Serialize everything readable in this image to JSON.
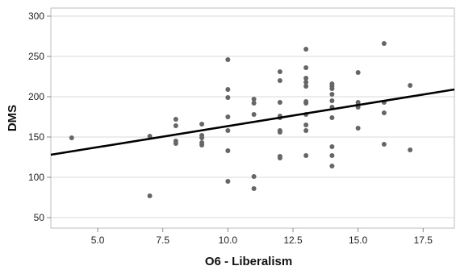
{
  "chart_data": {
    "type": "scatter",
    "title": "",
    "xlabel": "O6 - Liberalism",
    "ylabel": "DMS",
    "xlim": [
      3.2,
      18.7
    ],
    "ylim": [
      37,
      310
    ],
    "x_ticks": [
      5.0,
      7.5,
      10.0,
      12.5,
      15.0,
      17.5
    ],
    "y_ticks": [
      50,
      100,
      150,
      200,
      250,
      300
    ],
    "x_tick_labels": [
      "5.0",
      "7.5",
      "10.0",
      "12.5",
      "15.0",
      "17.5"
    ],
    "y_tick_labels": [
      "50",
      "100",
      "150",
      "200",
      "250",
      "300"
    ],
    "grid": "horizontal",
    "point_color": "#666666",
    "line_color": "#000000",
    "fit_line": {
      "x": [
        3.2,
        18.7
      ],
      "y": [
        128,
        209
      ]
    },
    "points": [
      {
        "x": 4,
        "y": 149
      },
      {
        "x": 7,
        "y": 151
      },
      {
        "x": 7,
        "y": 77
      },
      {
        "x": 8,
        "y": 172
      },
      {
        "x": 8,
        "y": 164
      },
      {
        "x": 8,
        "y": 145
      },
      {
        "x": 8,
        "y": 142
      },
      {
        "x": 9,
        "y": 166
      },
      {
        "x": 9,
        "y": 152
      },
      {
        "x": 9,
        "y": 149
      },
      {
        "x": 9,
        "y": 143
      },
      {
        "x": 9,
        "y": 140
      },
      {
        "x": 10,
        "y": 246
      },
      {
        "x": 10,
        "y": 209
      },
      {
        "x": 10,
        "y": 199
      },
      {
        "x": 10,
        "y": 175
      },
      {
        "x": 10,
        "y": 158
      },
      {
        "x": 10,
        "y": 133
      },
      {
        "x": 10,
        "y": 95
      },
      {
        "x": 11,
        "y": 197
      },
      {
        "x": 11,
        "y": 192
      },
      {
        "x": 11,
        "y": 178
      },
      {
        "x": 11,
        "y": 101
      },
      {
        "x": 11,
        "y": 86
      },
      {
        "x": 12,
        "y": 231
      },
      {
        "x": 12,
        "y": 220
      },
      {
        "x": 12,
        "y": 193
      },
      {
        "x": 12,
        "y": 176
      },
      {
        "x": 12,
        "y": 174
      },
      {
        "x": 12,
        "y": 158
      },
      {
        "x": 12,
        "y": 156
      },
      {
        "x": 12,
        "y": 126
      },
      {
        "x": 12,
        "y": 124
      },
      {
        "x": 13,
        "y": 259
      },
      {
        "x": 13,
        "y": 236
      },
      {
        "x": 13,
        "y": 223
      },
      {
        "x": 13,
        "y": 218
      },
      {
        "x": 13,
        "y": 213
      },
      {
        "x": 13,
        "y": 194
      },
      {
        "x": 13,
        "y": 192
      },
      {
        "x": 13,
        "y": 178
      },
      {
        "x": 13,
        "y": 165
      },
      {
        "x": 13,
        "y": 158
      },
      {
        "x": 13,
        "y": 127
      },
      {
        "x": 14,
        "y": 216
      },
      {
        "x": 14,
        "y": 213
      },
      {
        "x": 14,
        "y": 210
      },
      {
        "x": 14,
        "y": 203
      },
      {
        "x": 14,
        "y": 195
      },
      {
        "x": 14,
        "y": 187
      },
      {
        "x": 14,
        "y": 174
      },
      {
        "x": 14,
        "y": 138
      },
      {
        "x": 14,
        "y": 127
      },
      {
        "x": 14,
        "y": 114
      },
      {
        "x": 15,
        "y": 230
      },
      {
        "x": 15,
        "y": 193
      },
      {
        "x": 15,
        "y": 190
      },
      {
        "x": 15,
        "y": 187
      },
      {
        "x": 15,
        "y": 161
      },
      {
        "x": 16,
        "y": 266
      },
      {
        "x": 16,
        "y": 193
      },
      {
        "x": 16,
        "y": 180
      },
      {
        "x": 16,
        "y": 141
      },
      {
        "x": 17,
        "y": 214
      },
      {
        "x": 17,
        "y": 134
      }
    ]
  }
}
